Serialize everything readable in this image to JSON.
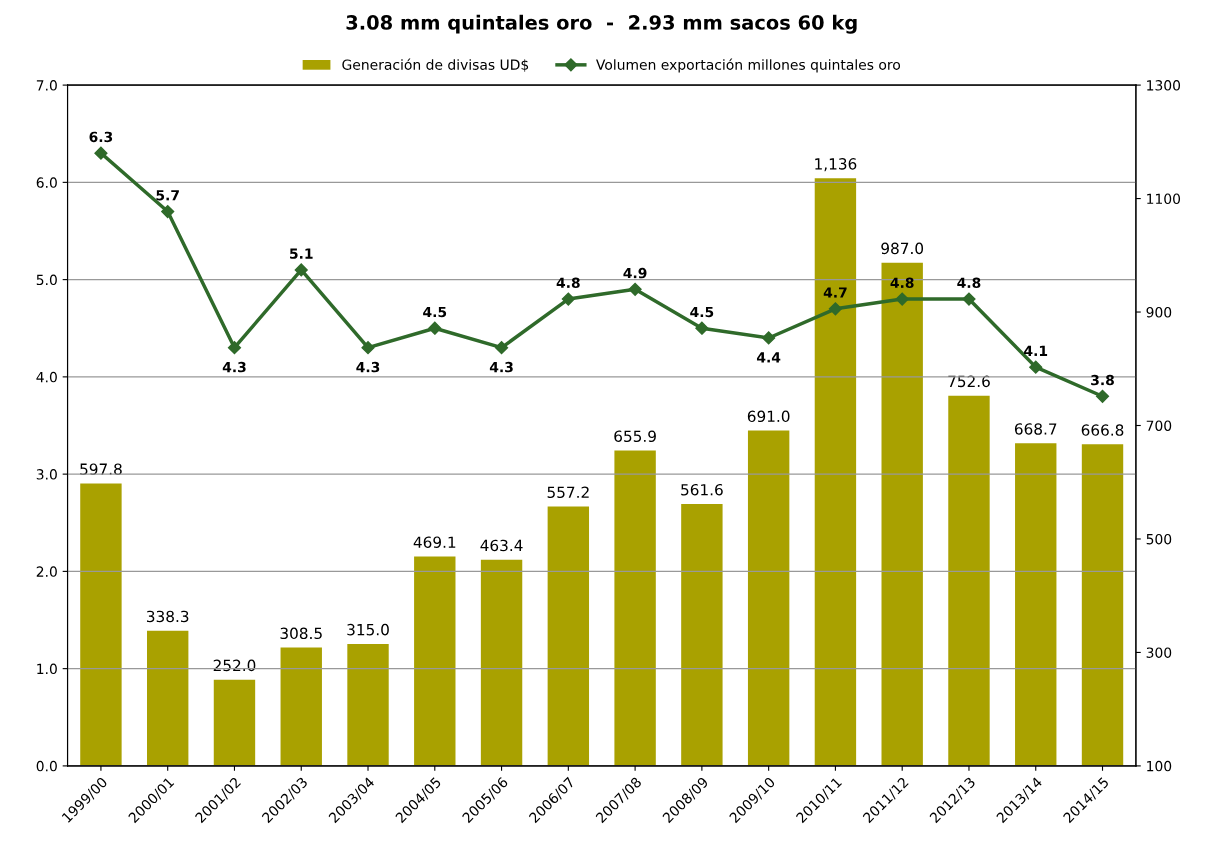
{
  "chart_data": {
    "type": "bar",
    "title": "3.08 mm quintales oro  -  2.93 mm sacos 60 kg",
    "categories": [
      "1999/00",
      "2000/01",
      "2001/02",
      "2002/03",
      "2003/04",
      "2004/05",
      "2005/06",
      "2006/07",
      "2007/08",
      "2008/09",
      "2009/10",
      "2010/11",
      "2011/12",
      "2012/13",
      "2013/14",
      "2014/15"
    ],
    "series": [
      {
        "name": "Generación de divisas UD$",
        "axis": "y2",
        "color": "#a9a100",
        "values": [
          597.8,
          338.3,
          252.0,
          308.5,
          315.0,
          469.1,
          463.4,
          557.2,
          655.9,
          561.6,
          691.0,
          1136,
          987.0,
          752.6,
          668.7,
          666.8
        ],
        "value_labels": [
          "597.8",
          "338.3",
          "252.0",
          "308.5",
          "315.0",
          "469.1",
          "463.4",
          "557.2",
          "655.9",
          "561.6",
          "691.0",
          "1,136",
          "987.0",
          "752.6",
          "668.7",
          "666.8"
        ]
      },
      {
        "name": "Volumen exportación millones quintales oro",
        "type": "line",
        "axis": "y",
        "color": "#2f6a2a",
        "marker": "diamond",
        "line_style": "solid",
        "values": [
          6.3,
          5.7,
          4.3,
          5.1,
          4.3,
          4.5,
          4.3,
          4.8,
          4.9,
          4.5,
          4.4,
          4.7,
          4.8,
          4.8,
          4.1,
          3.8
        ],
        "value_labels": [
          "6.3",
          "5.7",
          "4.3",
          "5.1",
          "4.3",
          "4.5",
          "4.3",
          "4.8",
          "4.9",
          "4.5",
          "4.4",
          "4.7",
          "4.8",
          "4.8",
          "4.1",
          "3.8"
        ]
      }
    ],
    "ylim": [
      0,
      7
    ],
    "yticks": [
      {
        "value": 0,
        "label": "0.0"
      },
      {
        "value": 1,
        "label": "1.0"
      },
      {
        "value": 2,
        "label": "2.0"
      },
      {
        "value": 3,
        "label": "3.0"
      },
      {
        "value": 4,
        "label": "4.0"
      },
      {
        "value": 5,
        "label": "5.0"
      },
      {
        "value": 6,
        "label": "6.0"
      },
      {
        "value": 7,
        "label": "7.0"
      }
    ],
    "y2lim": [
      100,
      1300
    ],
    "y2ticks": [
      100,
      300,
      500,
      700,
      900,
      1100,
      1300
    ],
    "grid": "y",
    "legend": "top"
  }
}
